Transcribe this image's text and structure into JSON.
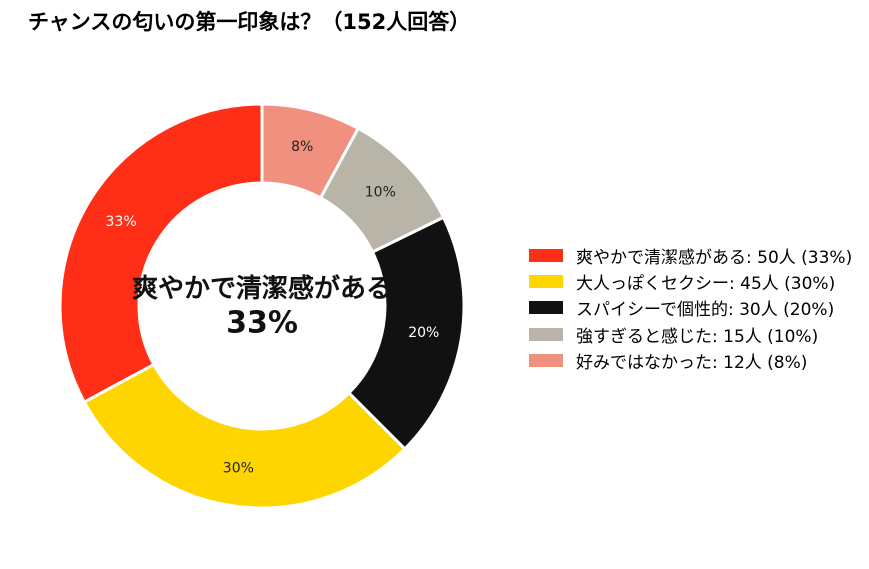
{
  "chart_data": {
    "type": "pie",
    "title": "チャンスの匂いの第一印象は？（152人回答）",
    "total_respondents": 152,
    "center_label": "爽やかで清潔感がある",
    "center_value": "33%",
    "legend_position": "right",
    "categories": [
      "爽やかで清潔感がある",
      "大人っぽくセクシー",
      "スパイシーで個性的",
      "強すぎると感じた",
      "好みではなかった"
    ],
    "values": [
      50,
      45,
      30,
      15,
      12
    ],
    "percent_labels": [
      "33%",
      "30%",
      "20%",
      "10%",
      "8%"
    ],
    "legend_labels": [
      "爽やかで清潔感がある:  50人 (33%)",
      "大人っぽくセクシー:  45人 (30%)",
      "スパイシーで個性的:  30人 (20%)",
      "強すぎると感じた:  15人 (10%)",
      "好みではなかった:  12人 (8%)"
    ],
    "colors": [
      "#ff2f17",
      "#ffd500",
      "#111111",
      "#b8b5a8",
      "#f0907f"
    ],
    "label_colors": [
      "#ffffff",
      "#222222",
      "#ffffff",
      "#222222",
      "#222222"
    ]
  }
}
